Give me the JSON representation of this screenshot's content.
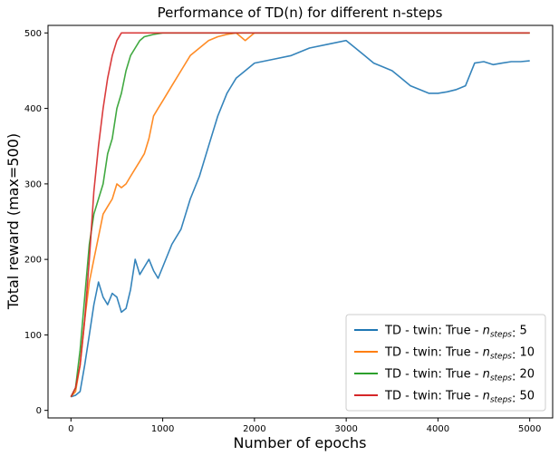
{
  "chart_data": {
    "type": "line",
    "title": "Performance of TD(n) for different n-steps",
    "xlabel": "Number of epochs",
    "ylabel": "Total reward (max=500)",
    "xlim": [
      -250,
      5250
    ],
    "ylim": [
      -10,
      510
    ],
    "xticks": [
      0,
      1000,
      2000,
      3000,
      4000,
      5000
    ],
    "yticks": [
      0,
      100,
      200,
      300,
      400,
      500
    ],
    "grid": false,
    "legend_position": "bottom-right",
    "legend_prefix": "TD - twin: True - ",
    "legend_var": "n",
    "legend_sub": "steps",
    "series": [
      {
        "name": "5",
        "label": "TD - twin: True - n_steps: 5",
        "color": "#1f77b4",
        "x": [
          0,
          50,
          100,
          150,
          200,
          250,
          300,
          350,
          400,
          450,
          500,
          550,
          600,
          650,
          700,
          750,
          800,
          850,
          900,
          950,
          1000,
          1100,
          1200,
          1300,
          1400,
          1500,
          1600,
          1700,
          1800,
          1900,
          2000,
          2200,
          2400,
          2600,
          2800,
          3000,
          3100,
          3200,
          3300,
          3400,
          3500,
          3600,
          3700,
          3800,
          3900,
          4000,
          4100,
          4200,
          4300,
          4400,
          4500,
          4600,
          4700,
          4800,
          4900,
          5000
        ],
        "y": [
          18,
          20,
          25,
          60,
          100,
          140,
          170,
          150,
          140,
          155,
          150,
          130,
          135,
          160,
          200,
          180,
          190,
          200,
          185,
          175,
          190,
          220,
          240,
          280,
          310,
          350,
          390,
          420,
          440,
          450,
          460,
          465,
          470,
          480,
          485,
          490,
          480,
          470,
          460,
          455,
          450,
          440,
          430,
          425,
          420,
          420,
          422,
          425,
          430,
          460,
          462,
          458,
          460,
          462,
          462,
          463
        ]
      },
      {
        "name": "10",
        "label": "TD - twin: True - n_steps: 10",
        "color": "#ff7f0e",
        "x": [
          0,
          50,
          100,
          150,
          200,
          250,
          300,
          350,
          400,
          450,
          500,
          550,
          600,
          650,
          700,
          750,
          800,
          850,
          900,
          950,
          1000,
          1100,
          1200,
          1300,
          1400,
          1500,
          1600,
          1700,
          1800,
          1900,
          2000,
          2200,
          2400,
          2600,
          2800,
          3000,
          3500,
          4000,
          4500,
          5000
        ],
        "y": [
          18,
          25,
          60,
          120,
          170,
          200,
          230,
          260,
          270,
          280,
          300,
          295,
          300,
          310,
          320,
          330,
          340,
          360,
          390,
          400,
          410,
          430,
          450,
          470,
          480,
          490,
          495,
          498,
          500,
          490,
          500,
          500,
          500,
          500,
          500,
          500,
          500,
          500,
          500,
          500
        ]
      },
      {
        "name": "20",
        "label": "TD - twin: True - n_steps: 20",
        "color": "#2ca02c",
        "x": [
          0,
          50,
          100,
          150,
          200,
          250,
          300,
          350,
          400,
          450,
          500,
          550,
          600,
          650,
          700,
          750,
          800,
          900,
          1000,
          1500,
          2000,
          2500,
          3000,
          3500,
          4000,
          4500,
          5000
        ],
        "y": [
          18,
          30,
          80,
          150,
          220,
          260,
          280,
          300,
          340,
          360,
          400,
          420,
          450,
          470,
          480,
          490,
          495,
          498,
          500,
          500,
          500,
          500,
          500,
          500,
          500,
          500,
          500
        ]
      },
      {
        "name": "50",
        "label": "TD - twin: True - n_steps: 50",
        "color": "#d62728",
        "x": [
          0,
          50,
          100,
          150,
          200,
          250,
          300,
          350,
          400,
          450,
          500,
          550,
          600,
          700,
          800,
          1000,
          1500,
          2000,
          2500,
          3000,
          3500,
          4000,
          4500,
          5000
        ],
        "y": [
          18,
          30,
          60,
          120,
          200,
          290,
          350,
          400,
          440,
          470,
          490,
          500,
          500,
          500,
          500,
          500,
          500,
          500,
          500,
          500,
          500,
          500,
          500,
          500
        ]
      }
    ]
  }
}
